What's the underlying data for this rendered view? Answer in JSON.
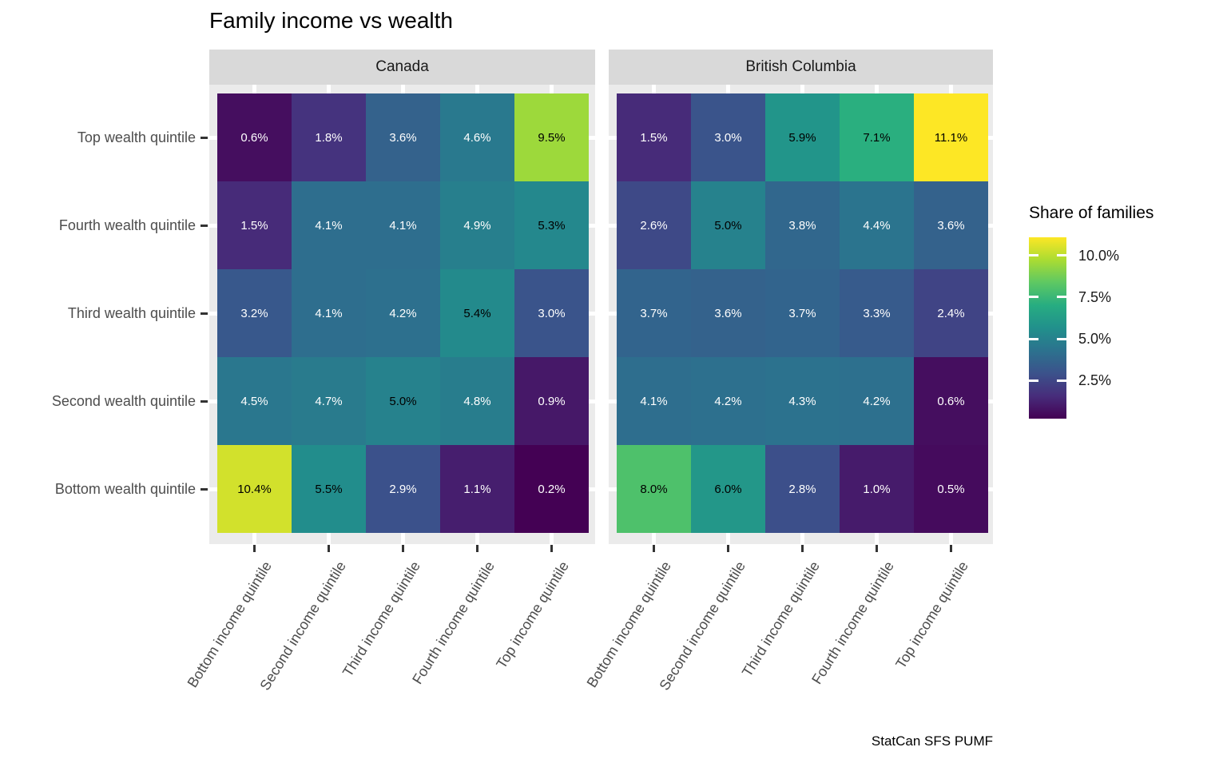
{
  "title": "Family income vs wealth",
  "caption": "StatCan SFS PUMF",
  "legend": {
    "title": "Share of families",
    "tick_labels": [
      "10.0%",
      "7.5%",
      "5.0%",
      "2.5%"
    ],
    "tick_values": [
      10.0,
      7.5,
      5.0,
      2.5
    ]
  },
  "chart_data": {
    "type": "heatmap",
    "title": "Family income vs wealth",
    "x_categories": [
      "Bottom income quintile",
      "Second income quintile",
      "Third income quintile",
      "Fourth income quintile",
      "Top income quintile"
    ],
    "y_categories": [
      "Top wealth quintile",
      "Fourth wealth quintile",
      "Third wealth quintile",
      "Second wealth quintile",
      "Bottom wealth quintile"
    ],
    "facets": [
      {
        "label": "Canada",
        "rows": [
          [
            0.6,
            1.8,
            3.6,
            4.6,
            9.5
          ],
          [
            1.5,
            4.1,
            4.1,
            4.9,
            5.3
          ],
          [
            3.2,
            4.1,
            4.2,
            5.4,
            3.0
          ],
          [
            4.5,
            4.7,
            5.0,
            4.8,
            0.9
          ],
          [
            10.4,
            5.5,
            2.9,
            1.1,
            0.2
          ]
        ]
      },
      {
        "label": "British Columbia",
        "rows": [
          [
            1.5,
            3.0,
            5.9,
            7.1,
            11.1
          ],
          [
            2.6,
            5.0,
            3.8,
            4.4,
            3.6
          ],
          [
            3.7,
            3.6,
            3.7,
            3.3,
            2.4
          ],
          [
            4.1,
            4.2,
            4.3,
            4.2,
            0.6
          ],
          [
            8.0,
            6.0,
            2.8,
            1.0,
            0.5
          ]
        ]
      }
    ],
    "value_format": "percent_1dp",
    "color_scale": {
      "palette": "viridis",
      "domain": [
        0.2,
        11.1
      ],
      "anchors": [
        "#440154",
        "#472d7b",
        "#3b528b",
        "#2c728e",
        "#21908c",
        "#27ad81",
        "#5dc863",
        "#aadc32",
        "#fde725"
      ],
      "legend_position": "right"
    },
    "label_color_rule": {
      "black_if_gte": 5.0,
      "black": "#000000",
      "white": "#ffffff"
    },
    "grid": true
  },
  "colors": {
    "panel_bg": "#ebebeb",
    "strip_bg": "#d9d9d9",
    "gridline": "#ffffff",
    "axis_text": "#4d4d4d",
    "tick_mark": "#333333"
  }
}
